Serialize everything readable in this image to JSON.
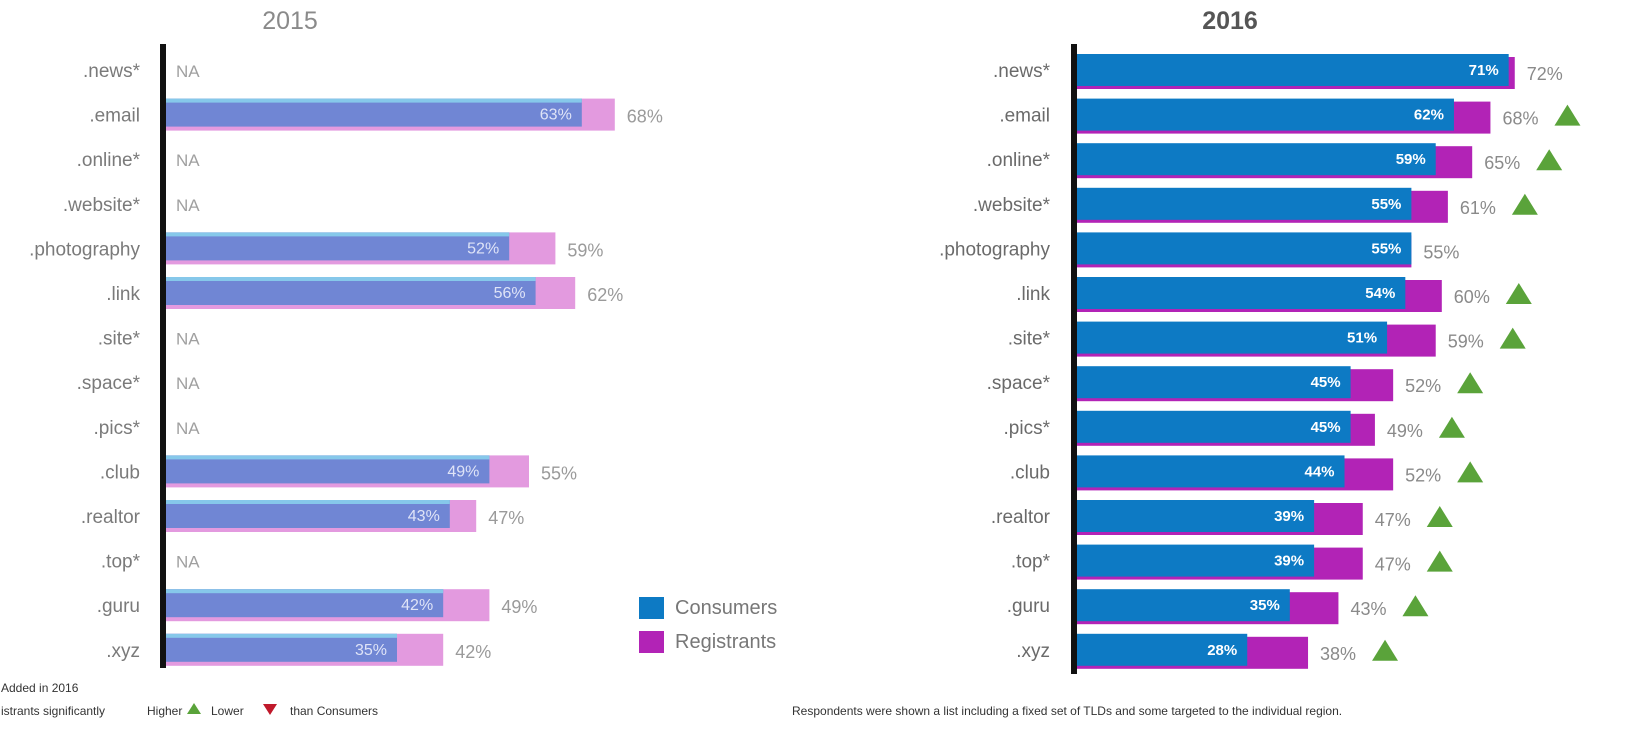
{
  "chart_data": [
    {
      "type": "bar",
      "title": "2015",
      "orientation": "horizontal",
      "categories": [
        ".news*",
        ".email",
        ".online*",
        ".website*",
        ".photography",
        ".link",
        ".site*",
        ".space*",
        ".pics*",
        ".club",
        ".realtor",
        ".top*",
        ".guru",
        ".xyz"
      ],
      "series": [
        {
          "name": "Consumers",
          "values": [
            null,
            63,
            null,
            null,
            52,
            56,
            null,
            null,
            null,
            49,
            43,
            null,
            42,
            35
          ]
        },
        {
          "name": "Registrants",
          "values": [
            null,
            68,
            null,
            null,
            59,
            62,
            null,
            null,
            null,
            55,
            47,
            null,
            49,
            42
          ]
        }
      ],
      "missing_label": "NA",
      "colors": {
        "consumers": "#7086d4",
        "consumers_top": "#86c8ea",
        "registrants": "#e39adf"
      },
      "legend": {
        "position": "bottom-right",
        "items": [
          {
            "label": "Consumers",
            "color": "#0d7ac4"
          },
          {
            "label": "Registrants",
            "color": "#b223b6"
          }
        ]
      }
    },
    {
      "type": "bar",
      "title": "2016",
      "orientation": "horizontal",
      "categories": [
        ".news*",
        ".email",
        ".online*",
        ".website*",
        ".photography",
        ".link",
        ".site*",
        ".space*",
        ".pics*",
        ".club",
        ".realtor",
        ".top*",
        ".guru",
        ".xyz"
      ],
      "series": [
        {
          "name": "Consumers",
          "values": [
            71,
            62,
            59,
            55,
            55,
            54,
            51,
            45,
            45,
            44,
            39,
            39,
            35,
            28
          ]
        },
        {
          "name": "Registrants",
          "values": [
            72,
            68,
            65,
            61,
            55,
            60,
            59,
            52,
            49,
            52,
            47,
            47,
            43,
            38
          ]
        }
      ],
      "significantly_higher": [
        false,
        true,
        true,
        true,
        false,
        true,
        true,
        true,
        true,
        true,
        true,
        true,
        true,
        true
      ],
      "colors": {
        "consumers": "#0d7ac4",
        "registrants": "#b223b6",
        "higher": "#5aa33a"
      }
    }
  ],
  "footnotes": {
    "added": "Added in 2016",
    "sig_prefix": "istrants significantly",
    "sig_higher": "Higher",
    "sig_lower": "Lower",
    "sig_suffix": "than Consumers",
    "respondents": "Respondents were shown a list including a fixed set of TLDs and some targeted to the individual region."
  },
  "icons": {
    "higher": "green-up-triangle",
    "lower": "red-down-triangle"
  }
}
